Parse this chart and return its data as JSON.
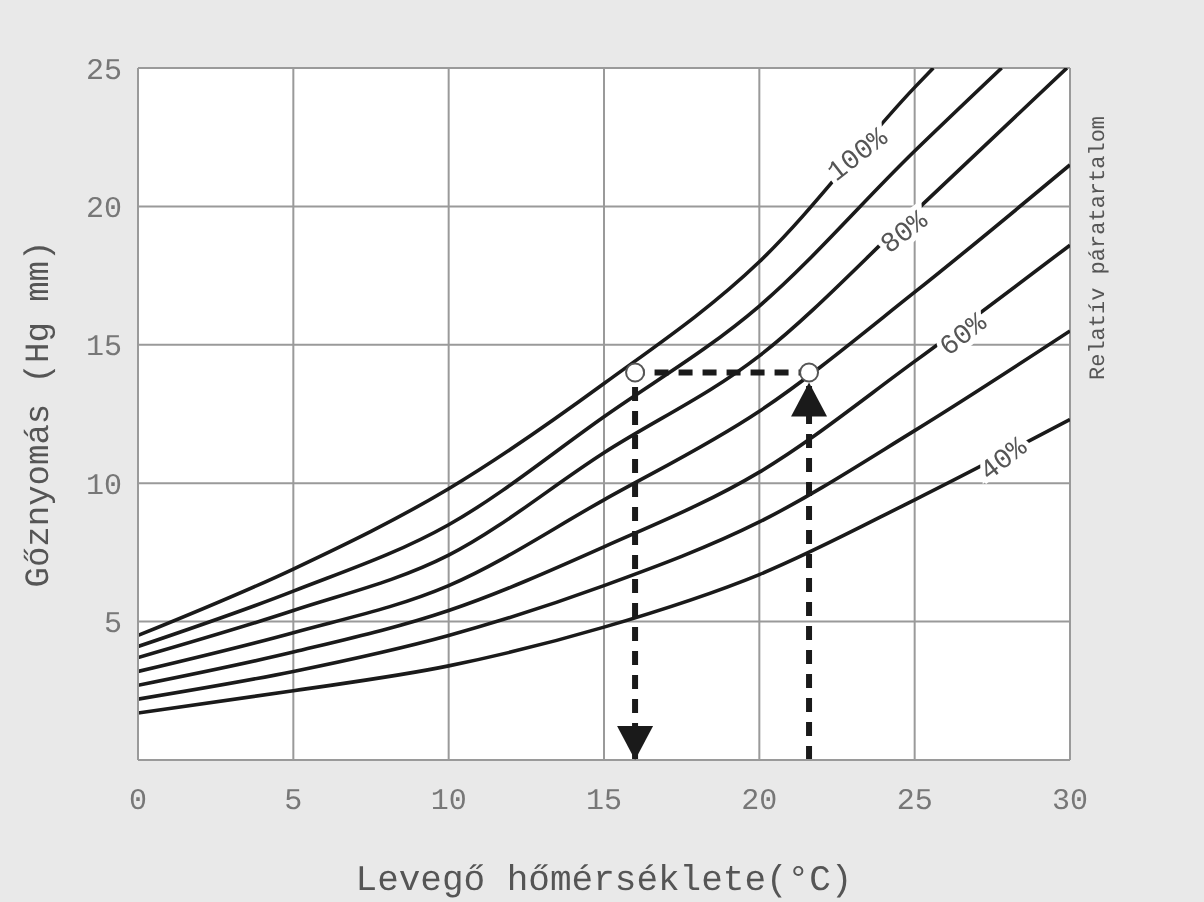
{
  "chart_data": {
    "type": "line",
    "xlabel": "Levegő hőmérséklete(°C)",
    "ylabel": "Gőznyomás (Hg mm)",
    "y2label": "Relatív páratartalom",
    "xlim": [
      0,
      30
    ],
    "xticks": [
      0,
      5,
      10,
      15,
      20,
      25,
      30
    ],
    "ylim": [
      0,
      25
    ],
    "yticks": [
      5,
      10,
      15,
      20,
      25
    ],
    "grid": true,
    "legend": false,
    "marker": "none",
    "line_style": "solid",
    "series": [
      {
        "color": "#1a1a1a",
        "x": [
          0,
          5,
          10,
          15,
          20,
          25,
          25.6
        ],
        "values": [
          4.5,
          6.9,
          9.8,
          13.6,
          18.0,
          24.3,
          25
        ]
      },
      {
        "color": "#1a1a1a",
        "x": [
          0,
          5,
          10,
          15,
          20,
          25,
          27.8
        ],
        "values": [
          4.1,
          6.1,
          8.5,
          12.4,
          16.4,
          22.0,
          25
        ]
      },
      {
        "color": "#1a1a1a",
        "x": [
          0,
          5,
          10,
          15,
          20,
          25,
          29.9
        ],
        "values": [
          3.7,
          5.4,
          7.4,
          11.1,
          14.6,
          19.8,
          25
        ]
      },
      {
        "color": "#1a1a1a",
        "x": [
          0,
          5,
          10,
          15,
          20,
          25,
          30
        ],
        "values": [
          3.2,
          4.6,
          6.3,
          9.4,
          12.6,
          16.9,
          21.5
        ]
      },
      {
        "color": "#1a1a1a",
        "x": [
          0,
          5,
          10,
          15,
          20,
          25,
          30
        ],
        "values": [
          2.7,
          3.9,
          5.4,
          7.7,
          10.4,
          14.4,
          18.6
        ]
      },
      {
        "color": "#1a1a1a",
        "x": [
          0,
          5,
          10,
          15,
          20,
          25,
          30
        ],
        "values": [
          2.2,
          3.2,
          4.5,
          6.3,
          8.6,
          11.9,
          15.5
        ]
      },
      {
        "color": "#1a1a1a",
        "x": [
          0,
          5,
          10,
          15,
          20,
          25,
          30
        ],
        "values": [
          1.7,
          2.5,
          3.4,
          4.8,
          6.7,
          9.4,
          12.3
        ]
      },
      {
        "color": "#1a1a1a",
        "line_style": "dashed",
        "marker": "circle",
        "x": [
          21.6,
          21.6,
          16,
          16
        ],
        "values": [
          0,
          14,
          14,
          0
        ]
      }
    ],
    "annotations": [
      {
        "text": "100%",
        "x": 23.2,
        "y": 21.8
      },
      {
        "text": "80%",
        "x": 24.7,
        "y": 19.0
      },
      {
        "text": "60%",
        "x": 26.6,
        "y": 15.3
      },
      {
        "text": "40%",
        "x": 27.9,
        "y": 10.8
      }
    ]
  }
}
